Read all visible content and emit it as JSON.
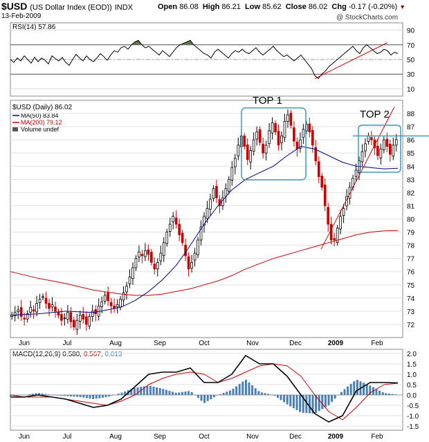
{
  "header": {
    "symbol": "$USD",
    "name": "(US Dollar Index (EOD))",
    "exchange": "INDX",
    "date": "13-Feb-2009",
    "open_label": "Open",
    "open": "86.08",
    "high_label": "High",
    "high": "86.21",
    "low_label": "Low",
    "low": "85.62",
    "close_label": "Close",
    "close": "86.02",
    "chg_label": "Chg",
    "chg": "-0.17 (-0.20%)",
    "brand": "@ StockCharts.com"
  },
  "chart_data": [
    {
      "type": "line",
      "panel": "rsi",
      "legend": "RSI(14) 57.86",
      "yticks": [
        90,
        70,
        50,
        30,
        10
      ],
      "ylim": [
        0,
        100
      ],
      "overbought": 70,
      "oversold": 30,
      "color": "#000000",
      "fill_color": "#5a7a4a",
      "x": [
        0,
        5,
        10,
        15,
        20,
        25,
        30,
        35,
        40,
        45,
        50,
        55,
        60,
        65,
        70,
        75,
        80,
        85,
        90,
        95,
        100,
        105,
        110,
        115,
        120,
        125,
        130,
        135,
        140,
        145,
        150,
        155,
        160,
        165,
        170,
        175,
        180,
        185,
        190,
        195,
        200,
        205,
        210,
        215,
        220,
        225,
        230,
        235,
        240,
        245,
        250,
        255,
        260,
        265,
        270,
        275,
        280,
        285,
        290,
        295,
        300,
        305,
        310,
        315,
        320,
        325,
        330,
        335,
        340,
        345,
        350,
        355,
        360,
        365,
        370,
        375,
        380,
        385,
        390,
        395,
        400,
        405,
        410,
        415,
        420,
        425,
        430,
        435,
        440,
        445,
        450,
        455,
        460,
        465,
        470,
        475,
        480,
        485,
        490,
        495,
        500,
        505,
        510,
        515,
        520,
        525,
        530,
        535,
        540,
        545,
        550,
        555,
        560
      ],
      "values": [
        50,
        46,
        52,
        48,
        55,
        50,
        45,
        53,
        47,
        52,
        49,
        44,
        55,
        51,
        48,
        53,
        46,
        42,
        50,
        57,
        52,
        48,
        55,
        50,
        47,
        52,
        58,
        54,
        49,
        56,
        62,
        60,
        66,
        68,
        64,
        70,
        74,
        76,
        70,
        66,
        68,
        64,
        60,
        56,
        62,
        58,
        54,
        60,
        66,
        70,
        72,
        74,
        76,
        70,
        66,
        62,
        58,
        56,
        52,
        60,
        64,
        60,
        56,
        52,
        58,
        62,
        60,
        64,
        60,
        58,
        62,
        66,
        60,
        56,
        60,
        64,
        68,
        62,
        58,
        54,
        56,
        52,
        48,
        52,
        56,
        50,
        44,
        38,
        28,
        24,
        30,
        34,
        40,
        44,
        48,
        52,
        56,
        60,
        64,
        68,
        62,
        58,
        66,
        70,
        66,
        62,
        58,
        60,
        64,
        62,
        56,
        60,
        58
      ]
    },
    {
      "type": "candlestick",
      "panel": "price",
      "legend": "$USD (Daily) 86.02",
      "yticks": [
        88,
        87,
        86,
        85,
        84,
        83,
        82,
        81,
        80,
        79,
        78,
        77,
        76,
        75,
        74,
        73,
        72
      ],
      "ylim": [
        71,
        89
      ],
      "up_color": "#000000",
      "down_color": "#cc0000",
      "ma50": {
        "name": "MA(50) 83.84",
        "color": "#00008b",
        "x": [
          0,
          40,
          80,
          120,
          160,
          180,
          200,
          220,
          240,
          260,
          280,
          300,
          320,
          340,
          360,
          380,
          400,
          420,
          440,
          460,
          480,
          500,
          520,
          540,
          560
        ],
        "values": [
          72.7,
          72.8,
          73.0,
          72.9,
          73.3,
          73.8,
          74.5,
          75.4,
          76.5,
          78.0,
          79.6,
          81.0,
          82.2,
          83.0,
          83.5,
          84.0,
          84.8,
          85.5,
          85.3,
          84.8,
          84.3,
          84.0,
          83.9,
          83.8,
          83.84
        ]
      },
      "ma200": {
        "name": "MA(200) 79.12",
        "color": "#cc0000",
        "x": [
          0,
          40,
          80,
          120,
          160,
          180,
          200,
          220,
          240,
          260,
          280,
          300,
          320,
          340,
          360,
          380,
          400,
          420,
          440,
          460,
          480,
          500,
          520,
          540,
          560
        ],
        "values": [
          76.0,
          75.5,
          75.1,
          74.6,
          74.3,
          74.2,
          74.2,
          74.3,
          74.5,
          74.7,
          75.0,
          75.3,
          75.7,
          76.2,
          76.6,
          77.0,
          77.3,
          77.6,
          77.9,
          78.2,
          78.5,
          78.8,
          79.0,
          79.1,
          79.12
        ]
      },
      "volume_legend": "Volume undef",
      "closes": [
        72.7,
        72.9,
        73.1,
        72.6,
        72.4,
        72.8,
        73.3,
        73.0,
        73.6,
        73.9,
        74.1,
        73.6,
        73.2,
        73.5,
        73.0,
        72.7,
        72.3,
        72.5,
        72.9,
        72.2,
        71.8,
        72.3,
        72.7,
        72.4,
        72.0,
        72.6,
        73.0,
        72.8,
        73.4,
        73.7,
        74.2,
        73.8,
        73.4,
        73.2,
        73.5,
        73.9,
        74.4,
        74.9,
        75.6,
        76.3,
        77.0,
        77.5,
        77.2,
        77.6,
        77.3,
        76.7,
        76.2,
        76.7,
        77.4,
        78.2,
        79.0,
        79.6,
        80.2,
        79.6,
        78.8,
        78.2,
        77.2,
        76.2,
        76.7,
        77.4,
        78.4,
        79.4,
        80.2,
        80.8,
        81.5,
        82.3,
        81.6,
        81.0,
        81.6,
        82.3,
        83.0,
        83.9,
        84.6,
        85.6,
        86.3,
        85.5,
        84.5,
        85.2,
        86.0,
        86.6,
        85.8,
        85.0,
        85.6,
        86.7,
        87.3,
        86.6,
        85.6,
        86.3,
        87.4,
        87.9,
        87.1,
        85.9,
        85.3,
        86.0,
        86.8,
        87.2,
        86.6,
        85.6,
        84.4,
        83.2,
        82.4,
        81.0,
        79.6,
        78.4,
        78.4,
        79.3,
        80.2,
        80.8,
        81.7,
        82.4,
        83.1,
        83.7,
        84.4,
        85.1,
        85.7,
        86.3,
        86.0,
        85.4,
        84.8,
        85.3,
        86.0,
        85.5,
        84.9,
        85.6,
        86.02
      ]
    },
    {
      "type": "line",
      "panel": "macd",
      "legend": "MACD(12,26,9) 0.580, 0.567, 0.013",
      "legend_parts": {
        "macd": "MACD(12,26,9) 0.580,",
        "signal": "0.567,",
        "hist": "0.013"
      },
      "yticks": [
        2.0,
        1.5,
        1.0,
        0.5,
        0.0,
        -0.5,
        -1.0,
        -1.5
      ],
      "ylim": [
        -1.7,
        2.2
      ],
      "macd_color": "#000000",
      "signal_color": "#cc0000",
      "hist_color": "#4a7fb5",
      "x": [
        0,
        20,
        40,
        60,
        80,
        100,
        120,
        140,
        160,
        180,
        200,
        220,
        240,
        260,
        280,
        300,
        320,
        340,
        360,
        380,
        400,
        420,
        440,
        460,
        480,
        500,
        520,
        540,
        560
      ],
      "macd": [
        -0.1,
        -0.1,
        0.0,
        -0.1,
        -0.2,
        -0.4,
        -0.6,
        -0.5,
        -0.2,
        0.4,
        1.0,
        1.1,
        1.1,
        1.3,
        0.6,
        0.6,
        1.0,
        1.9,
        1.5,
        1.5,
        0.9,
        0.0,
        -0.9,
        -1.3,
        -1.0,
        0.2,
        0.6,
        0.6,
        0.58
      ],
      "signal": [
        0.0,
        -0.1,
        -0.1,
        -0.1,
        -0.2,
        -0.3,
        -0.4,
        -0.5,
        -0.3,
        0.0,
        0.5,
        0.8,
        1.0,
        1.1,
        1.0,
        0.6,
        0.8,
        1.1,
        1.4,
        1.5,
        1.4,
        0.9,
        0.0,
        -0.8,
        -1.2,
        -0.6,
        0.1,
        0.5,
        0.567
      ],
      "histogram": [
        -0.05,
        0.0,
        0.1,
        0.0,
        -0.05,
        -0.1,
        -0.2,
        -0.1,
        0.1,
        0.35,
        0.45,
        0.3,
        0.1,
        0.2,
        -0.4,
        0.0,
        0.25,
        0.75,
        0.15,
        0.0,
        -0.45,
        -0.85,
        -0.9,
        -0.5,
        0.2,
        0.75,
        0.45,
        0.1,
        0.013
      ]
    }
  ],
  "x_axis": {
    "months": [
      {
        "label": "Jun",
        "x": 20
      },
      {
        "label": "Jul",
        "x": 82
      },
      {
        "label": "Aug",
        "x": 152
      },
      {
        "label": "Sep",
        "x": 216
      },
      {
        "label": "Oct",
        "x": 280
      },
      {
        "label": "Nov",
        "x": 350
      },
      {
        "label": "Dec",
        "x": 412
      },
      {
        "label": "2009",
        "x": 470,
        "bold": true
      },
      {
        "label": "Feb",
        "x": 530
      }
    ]
  },
  "annotations": {
    "top1_label": "TOP 1",
    "top2_label": "TOP 2",
    "box_color": "#3d9ac0"
  }
}
